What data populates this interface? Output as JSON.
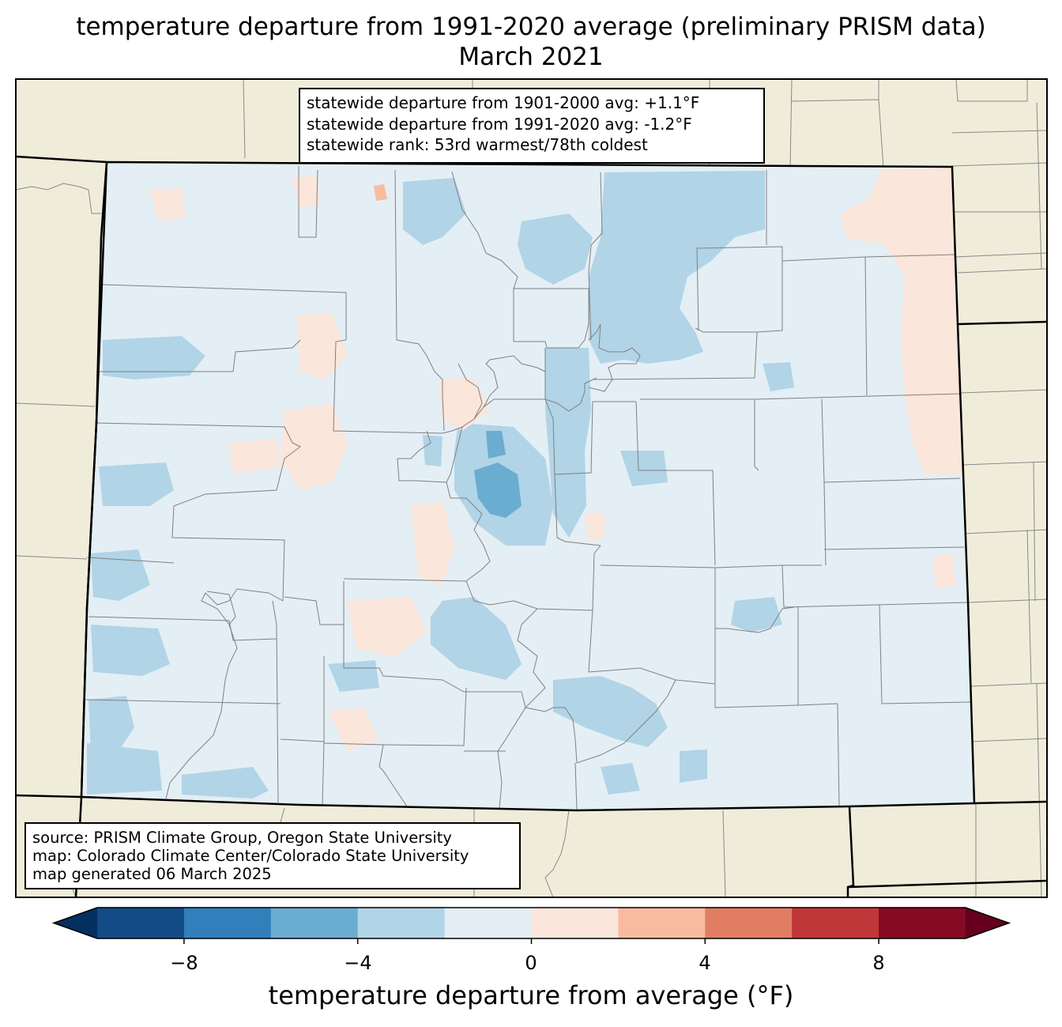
{
  "title": "temperature departure from 1991-2020 average (preliminary PRISM data)",
  "subtitle": "March 2021",
  "stats_box": {
    "line1": "statewide departure from 1901-2000 avg: +1.1°F",
    "line2": "statewide departure from 1991-2020 avg: -1.2°F",
    "line3": "statewide rank: 53rd warmest/78th coldest"
  },
  "source_box": {
    "line1": "source: PRISM Climate Group, Oregon State University",
    "line2": "map: Colorado Climate Center/Colorado State University",
    "line3": "map generated 06 March 2025"
  },
  "colorbar": {
    "label": "temperature departure from average (°F)",
    "ticks": [
      "−8",
      "−4",
      "0",
      "4",
      "8"
    ],
    "bins": [
      -10,
      -8,
      -6,
      -4,
      -2,
      0,
      2,
      4,
      6,
      8,
      10
    ],
    "colors": [
      "#053061",
      "#134b87",
      "#327fbb",
      "#6bacd1",
      "#b1d4e7",
      "#e4eef5",
      "#fbe6dc",
      "#f8bba0",
      "#e17d63",
      "#c13639",
      "#870a24",
      "#67001f"
    ]
  },
  "map_colors": {
    "land_background": "#efedda",
    "state_fill": "#e4eef5",
    "cool_light": "#b1d4e7",
    "cool_medium": "#6bacd1",
    "warm_light": "#fbe6dc",
    "warm_medium": "#f8bba0"
  }
}
